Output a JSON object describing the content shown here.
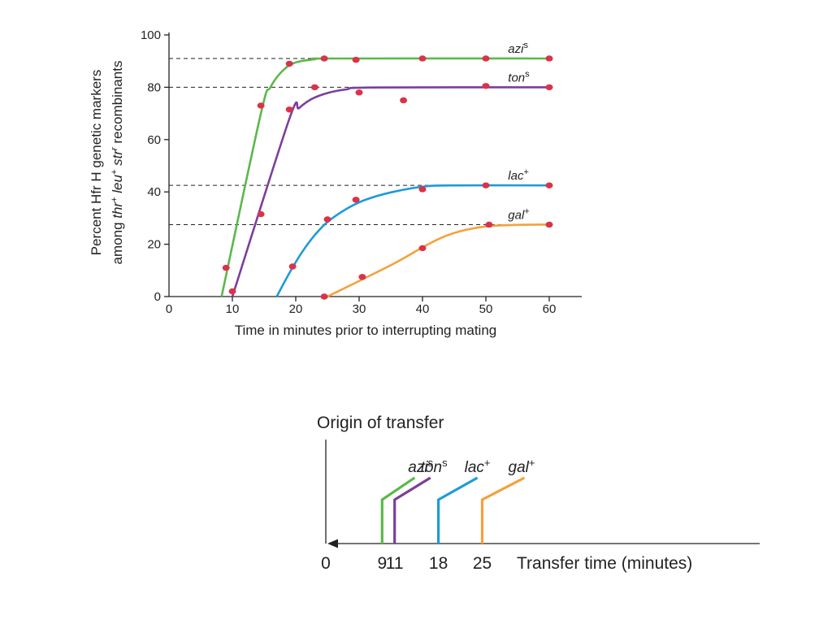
{
  "chart_data": [
    {
      "type": "line",
      "ylabel_line1": "Percent Hfr H genetic markers",
      "ylabel_line2_parts": [
        {
          "t": "among ",
          "i": false
        },
        {
          "t": "thr",
          "i": true
        },
        {
          "t": "+",
          "i": false,
          "sup": true
        },
        {
          "t": " leu",
          "i": true
        },
        {
          "t": "+",
          "i": false,
          "sup": true
        },
        {
          "t": " str",
          "i": true
        },
        {
          "t": "r",
          "i": true,
          "sup": true
        },
        {
          "t": " recombinants",
          "i": false
        }
      ],
      "xlabel": "Time in minutes prior to interrupting mating",
      "xlim": [
        0,
        65
      ],
      "ylim": [
        0,
        100
      ],
      "xticks": [
        "0",
        "10",
        "20",
        "30",
        "40",
        "50",
        "60"
      ],
      "yticks": [
        "0",
        "20",
        "40",
        "60",
        "80",
        "100"
      ],
      "grid": false,
      "series": [
        {
          "name": "azi",
          "sup": "s",
          "color": "#5bb84a",
          "plateau": 91,
          "curve": [
            [
              8.3,
              0
            ],
            [
              14.5,
              70
            ],
            [
              16,
              80
            ],
            [
              18,
              86.5
            ],
            [
              20,
              89.5
            ],
            [
              23,
              90.7
            ],
            [
              26,
              91
            ],
            [
              60,
              91
            ]
          ],
          "points": [
            [
              9,
              11
            ],
            [
              14.5,
              73
            ],
            [
              19,
              89
            ],
            [
              24.5,
              91
            ],
            [
              29.5,
              90.5
            ],
            [
              40,
              91
            ],
            [
              50,
              91
            ],
            [
              60,
              91
            ]
          ]
        },
        {
          "name": "ton",
          "sup": "s",
          "color": "#7b3f9a",
          "plateau": 80,
          "curve": [
            [
              10,
              0
            ],
            [
              19,
              68
            ],
            [
              20.5,
              72
            ],
            [
              22.5,
              75.5
            ],
            [
              25,
              77.8
            ],
            [
              28,
              79.2
            ],
            [
              32,
              79.9
            ],
            [
              60,
              80
            ]
          ],
          "points": [
            [
              10,
              2
            ],
            [
              14.5,
              31.5
            ],
            [
              19,
              71.5
            ],
            [
              23,
              80
            ],
            [
              30,
              78
            ],
            [
              37,
              75
            ],
            [
              50,
              80.5
            ],
            [
              60,
              80
            ]
          ]
        },
        {
          "name": "lac",
          "sup": "+",
          "color": "#1e9bd7",
          "plateau": 42.5,
          "curve": [
            [
              17,
              0
            ],
            [
              19,
              9
            ],
            [
              21,
              17
            ],
            [
              23,
              23.5
            ],
            [
              25,
              28.5
            ],
            [
              28,
              33.5
            ],
            [
              31,
              37
            ],
            [
              35,
              39.8
            ],
            [
              40,
              42
            ],
            [
              45,
              42.5
            ],
            [
              60,
              42.5
            ]
          ],
          "points": [
            [
              19.5,
              11.5
            ],
            [
              25,
              29.5
            ],
            [
              29.5,
              37
            ],
            [
              40,
              41
            ],
            [
              50,
              42.5
            ],
            [
              60,
              42.5
            ]
          ]
        },
        {
          "name": "gal",
          "sup": "+",
          "color": "#f5a13c",
          "plateau": 27.5,
          "curve": [
            [
              25,
              0
            ],
            [
              35,
              12
            ],
            [
              40,
              18.8
            ],
            [
              43,
              22.5
            ],
            [
              46,
              25
            ],
            [
              50,
              26.8
            ],
            [
              55,
              27.4
            ],
            [
              60,
              27.5
            ]
          ],
          "points": [
            [
              24.5,
              0
            ],
            [
              30.5,
              7.5
            ],
            [
              40,
              18.5
            ],
            [
              50.5,
              27.5
            ],
            [
              60,
              27.5
            ]
          ]
        }
      ]
    },
    {
      "type": "diagram",
      "title": "Origin of transfer",
      "axis_label": "Transfer time (minutes)",
      "zero_label": "0",
      "markers": [
        {
          "name": "azi",
          "sup": "s",
          "time": 9,
          "label": "9",
          "color": "#5bb84a"
        },
        {
          "name": "ton",
          "sup": "s",
          "time": 11,
          "label": "11",
          "color": "#7b3f9a"
        },
        {
          "name": "lac",
          "sup": "+",
          "time": 18,
          "label": "18",
          "color": "#1e9bd7"
        },
        {
          "name": "gal",
          "sup": "+",
          "time": 25,
          "label": "25",
          "color": "#f5a13c"
        }
      ]
    }
  ]
}
